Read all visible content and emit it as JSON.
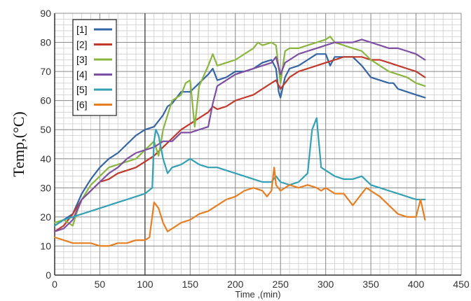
{
  "chart_data": {
    "type": "line",
    "xlabel": "Time ,(min)",
    "ylabel": "Temp,(°C)",
    "xlim": [
      0,
      450
    ],
    "ylim": [
      0,
      90
    ],
    "x_ticks": [
      0,
      50,
      100,
      150,
      200,
      250,
      300,
      350,
      400,
      450
    ],
    "y_ticks": [
      0,
      10,
      20,
      30,
      40,
      50,
      60,
      70,
      80,
      90
    ],
    "x_minor_step": 10,
    "y_minor_step": 2,
    "grid": true,
    "reference_line_x": 100,
    "legend_position": "top-left",
    "series": [
      {
        "name": "[1]",
        "color": "#3465a4",
        "points": [
          [
            0,
            17
          ],
          [
            10,
            19
          ],
          [
            20,
            21
          ],
          [
            30,
            28
          ],
          [
            40,
            33
          ],
          [
            50,
            37
          ],
          [
            60,
            40
          ],
          [
            70,
            42
          ],
          [
            80,
            45
          ],
          [
            90,
            48
          ],
          [
            100,
            50
          ],
          [
            110,
            51
          ],
          [
            120,
            55
          ],
          [
            125,
            58
          ],
          [
            130,
            59
          ],
          [
            140,
            63
          ],
          [
            150,
            63
          ],
          [
            160,
            66
          ],
          [
            170,
            69
          ],
          [
            175,
            71
          ],
          [
            180,
            67
          ],
          [
            190,
            68
          ],
          [
            200,
            70
          ],
          [
            210,
            70
          ],
          [
            220,
            71
          ],
          [
            230,
            73
          ],
          [
            240,
            74
          ],
          [
            245,
            71
          ],
          [
            248,
            63
          ],
          [
            250,
            61
          ],
          [
            255,
            68
          ],
          [
            260,
            71
          ],
          [
            270,
            72
          ],
          [
            280,
            74
          ],
          [
            290,
            76
          ],
          [
            300,
            76
          ],
          [
            305,
            72
          ],
          [
            310,
            75
          ],
          [
            320,
            75
          ],
          [
            330,
            75
          ],
          [
            340,
            72
          ],
          [
            350,
            68
          ],
          [
            360,
            67
          ],
          [
            370,
            66
          ],
          [
            375,
            66
          ],
          [
            380,
            64
          ],
          [
            390,
            63
          ],
          [
            400,
            62
          ],
          [
            410,
            61
          ]
        ]
      },
      {
        "name": "[2]",
        "color": "#c0392b",
        "points": [
          [
            0,
            15
          ],
          [
            10,
            17
          ],
          [
            20,
            21
          ],
          [
            30,
            26
          ],
          [
            40,
            29
          ],
          [
            50,
            32
          ],
          [
            60,
            33
          ],
          [
            70,
            35
          ],
          [
            80,
            36
          ],
          [
            90,
            37
          ],
          [
            100,
            39
          ],
          [
            110,
            41
          ],
          [
            120,
            44
          ],
          [
            130,
            47
          ],
          [
            140,
            50
          ],
          [
            150,
            52
          ],
          [
            160,
            54
          ],
          [
            170,
            56
          ],
          [
            175,
            58
          ],
          [
            180,
            57
          ],
          [
            190,
            58
          ],
          [
            200,
            60
          ],
          [
            210,
            61
          ],
          [
            220,
            62
          ],
          [
            230,
            64
          ],
          [
            240,
            66
          ],
          [
            245,
            67
          ],
          [
            250,
            64
          ],
          [
            255,
            66
          ],
          [
            260,
            68
          ],
          [
            270,
            70
          ],
          [
            280,
            71
          ],
          [
            290,
            72
          ],
          [
            300,
            73
          ],
          [
            310,
            74
          ],
          [
            320,
            75
          ],
          [
            330,
            75
          ],
          [
            340,
            75
          ],
          [
            350,
            74
          ],
          [
            360,
            74
          ],
          [
            370,
            73
          ],
          [
            380,
            72
          ],
          [
            390,
            71
          ],
          [
            400,
            70
          ],
          [
            410,
            68
          ]
        ]
      },
      {
        "name": "[3]",
        "color": "#8ab63f",
        "points": [
          [
            0,
            18
          ],
          [
            10,
            19
          ],
          [
            20,
            17
          ],
          [
            25,
            22
          ],
          [
            30,
            26
          ],
          [
            40,
            31
          ],
          [
            50,
            34
          ],
          [
            60,
            37
          ],
          [
            70,
            38
          ],
          [
            80,
            39
          ],
          [
            90,
            40
          ],
          [
            100,
            43
          ],
          [
            110,
            46
          ],
          [
            115,
            41
          ],
          [
            120,
            50
          ],
          [
            125,
            55
          ],
          [
            130,
            60
          ],
          [
            140,
            62
          ],
          [
            145,
            66
          ],
          [
            150,
            67
          ],
          [
            155,
            51
          ],
          [
            160,
            65
          ],
          [
            170,
            72
          ],
          [
            175,
            76
          ],
          [
            180,
            72
          ],
          [
            190,
            73
          ],
          [
            200,
            74
          ],
          [
            210,
            76
          ],
          [
            220,
            78
          ],
          [
            225,
            80
          ],
          [
            230,
            79
          ],
          [
            240,
            80
          ],
          [
            245,
            79
          ],
          [
            250,
            66
          ],
          [
            255,
            77
          ],
          [
            260,
            78
          ],
          [
            270,
            78
          ],
          [
            280,
            79
          ],
          [
            290,
            80
          ],
          [
            300,
            81
          ],
          [
            305,
            82
          ],
          [
            310,
            80
          ],
          [
            320,
            79
          ],
          [
            330,
            78
          ],
          [
            340,
            77
          ],
          [
            350,
            74
          ],
          [
            360,
            72
          ],
          [
            370,
            70
          ],
          [
            380,
            69
          ],
          [
            390,
            68
          ],
          [
            400,
            66
          ],
          [
            410,
            65
          ]
        ]
      },
      {
        "name": "[4]",
        "color": "#7e4fa3",
        "points": [
          [
            0,
            15
          ],
          [
            10,
            16
          ],
          [
            20,
            19
          ],
          [
            30,
            26
          ],
          [
            40,
            29
          ],
          [
            50,
            32
          ],
          [
            60,
            35
          ],
          [
            70,
            37
          ],
          [
            80,
            40
          ],
          [
            90,
            42
          ],
          [
            100,
            43
          ],
          [
            110,
            44
          ],
          [
            120,
            46
          ],
          [
            130,
            46
          ],
          [
            140,
            49
          ],
          [
            150,
            49
          ],
          [
            160,
            50
          ],
          [
            170,
            51
          ],
          [
            175,
            59
          ],
          [
            180,
            65
          ],
          [
            190,
            67
          ],
          [
            200,
            69
          ],
          [
            210,
            70
          ],
          [
            220,
            71
          ],
          [
            230,
            72
          ],
          [
            240,
            73
          ],
          [
            245,
            75
          ],
          [
            250,
            69
          ],
          [
            255,
            73
          ],
          [
            260,
            74
          ],
          [
            270,
            76
          ],
          [
            280,
            77
          ],
          [
            290,
            78
          ],
          [
            300,
            79
          ],
          [
            310,
            80
          ],
          [
            320,
            80
          ],
          [
            330,
            80
          ],
          [
            340,
            81
          ],
          [
            350,
            80
          ],
          [
            360,
            79
          ],
          [
            370,
            78
          ],
          [
            380,
            78
          ],
          [
            390,
            77
          ],
          [
            400,
            76
          ],
          [
            410,
            74
          ]
        ]
      },
      {
        "name": "[5]",
        "color": "#33a1b5",
        "points": [
          [
            0,
            17
          ],
          [
            10,
            19
          ],
          [
            20,
            20
          ],
          [
            30,
            21
          ],
          [
            40,
            22
          ],
          [
            50,
            23
          ],
          [
            60,
            24
          ],
          [
            70,
            25
          ],
          [
            80,
            26
          ],
          [
            90,
            27
          ],
          [
            100,
            28
          ],
          [
            108,
            30
          ],
          [
            110,
            46
          ],
          [
            112,
            50
          ],
          [
            115,
            48
          ],
          [
            120,
            40
          ],
          [
            125,
            35
          ],
          [
            130,
            37
          ],
          [
            140,
            38
          ],
          [
            150,
            40
          ],
          [
            160,
            38
          ],
          [
            170,
            37
          ],
          [
            180,
            37
          ],
          [
            190,
            36
          ],
          [
            200,
            35
          ],
          [
            210,
            34
          ],
          [
            220,
            33
          ],
          [
            230,
            32
          ],
          [
            240,
            32
          ],
          [
            245,
            34
          ],
          [
            250,
            32
          ],
          [
            260,
            31
          ],
          [
            270,
            32
          ],
          [
            280,
            35
          ],
          [
            285,
            50
          ],
          [
            290,
            54
          ],
          [
            295,
            37
          ],
          [
            300,
            36
          ],
          [
            310,
            34
          ],
          [
            320,
            33
          ],
          [
            330,
            33
          ],
          [
            340,
            34
          ],
          [
            350,
            31
          ],
          [
            360,
            30
          ],
          [
            370,
            29
          ],
          [
            380,
            28
          ],
          [
            390,
            27
          ],
          [
            400,
            26
          ],
          [
            410,
            26
          ]
        ]
      },
      {
        "name": "[6]",
        "color": "#e67e22",
        "points": [
          [
            0,
            13
          ],
          [
            10,
            12
          ],
          [
            20,
            11
          ],
          [
            30,
            11
          ],
          [
            40,
            11
          ],
          [
            50,
            10
          ],
          [
            60,
            10
          ],
          [
            70,
            11
          ],
          [
            80,
            11
          ],
          [
            90,
            12
          ],
          [
            100,
            12
          ],
          [
            105,
            13
          ],
          [
            110,
            25
          ],
          [
            115,
            23
          ],
          [
            120,
            18
          ],
          [
            125,
            15
          ],
          [
            130,
            16
          ],
          [
            140,
            18
          ],
          [
            150,
            19
          ],
          [
            160,
            21
          ],
          [
            170,
            22
          ],
          [
            180,
            24
          ],
          [
            190,
            26
          ],
          [
            200,
            27
          ],
          [
            210,
            29
          ],
          [
            220,
            30
          ],
          [
            230,
            29
          ],
          [
            235,
            27
          ],
          [
            240,
            29
          ],
          [
            243,
            37
          ],
          [
            245,
            31
          ],
          [
            250,
            29
          ],
          [
            260,
            31
          ],
          [
            270,
            30
          ],
          [
            280,
            31
          ],
          [
            290,
            30
          ],
          [
            295,
            29
          ],
          [
            300,
            30
          ],
          [
            310,
            28
          ],
          [
            320,
            28
          ],
          [
            330,
            24
          ],
          [
            340,
            28
          ],
          [
            345,
            30
          ],
          [
            350,
            29
          ],
          [
            360,
            27
          ],
          [
            370,
            24
          ],
          [
            380,
            21
          ],
          [
            390,
            20
          ],
          [
            400,
            20
          ],
          [
            405,
            26
          ],
          [
            410,
            19
          ]
        ]
      }
    ]
  }
}
